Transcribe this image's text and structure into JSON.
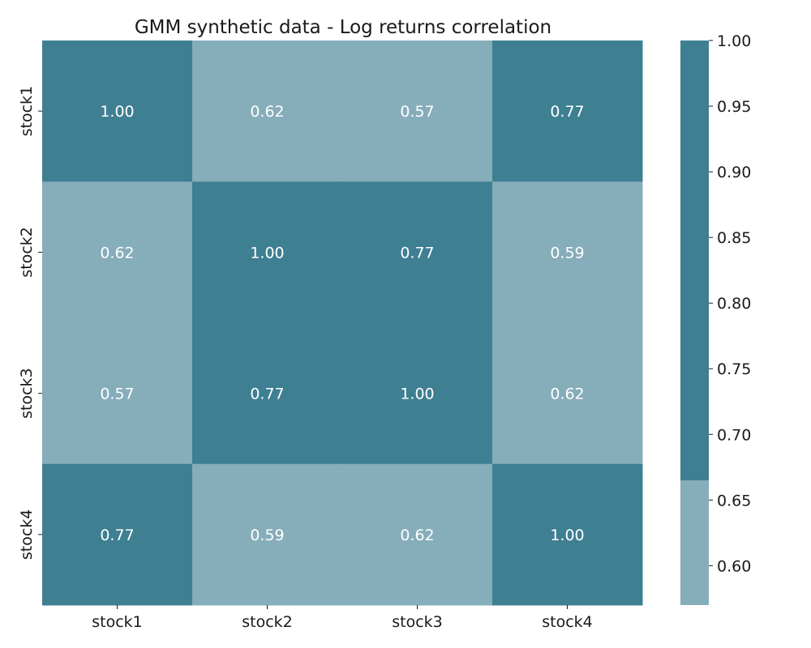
{
  "chart_data": {
    "type": "heatmap",
    "title": "GMM synthetic data - Log returns correlation",
    "x_categories": [
      "stock1",
      "stock2",
      "stock3",
      "stock4"
    ],
    "y_categories": [
      "stock1",
      "stock2",
      "stock3",
      "stock4"
    ],
    "values": [
      [
        1.0,
        0.62,
        0.57,
        0.77
      ],
      [
        0.62,
        1.0,
        0.77,
        0.59
      ],
      [
        0.57,
        0.77,
        1.0,
        0.62
      ],
      [
        0.77,
        0.59,
        0.62,
        1.0
      ]
    ],
    "value_labels": [
      [
        "1.00",
        "0.62",
        "0.57",
        "0.77"
      ],
      [
        "0.62",
        "1.00",
        "0.77",
        "0.59"
      ],
      [
        "0.57",
        "0.77",
        "1.00",
        "0.62"
      ],
      [
        "0.77",
        "0.59",
        "0.62",
        "1.00"
      ]
    ],
    "colorbar": {
      "range": [
        0.57,
        1.0
      ],
      "threshold": 0.665,
      "low_color": "#86adba",
      "high_color": "#3e7f92",
      "ticks": [
        1.0,
        0.95,
        0.9,
        0.85,
        0.8,
        0.75,
        0.7,
        0.65,
        0.6
      ],
      "tick_labels": [
        "1.00",
        "0.95",
        "0.90",
        "0.85",
        "0.80",
        "0.75",
        "0.70",
        "0.65",
        "0.60"
      ]
    }
  }
}
